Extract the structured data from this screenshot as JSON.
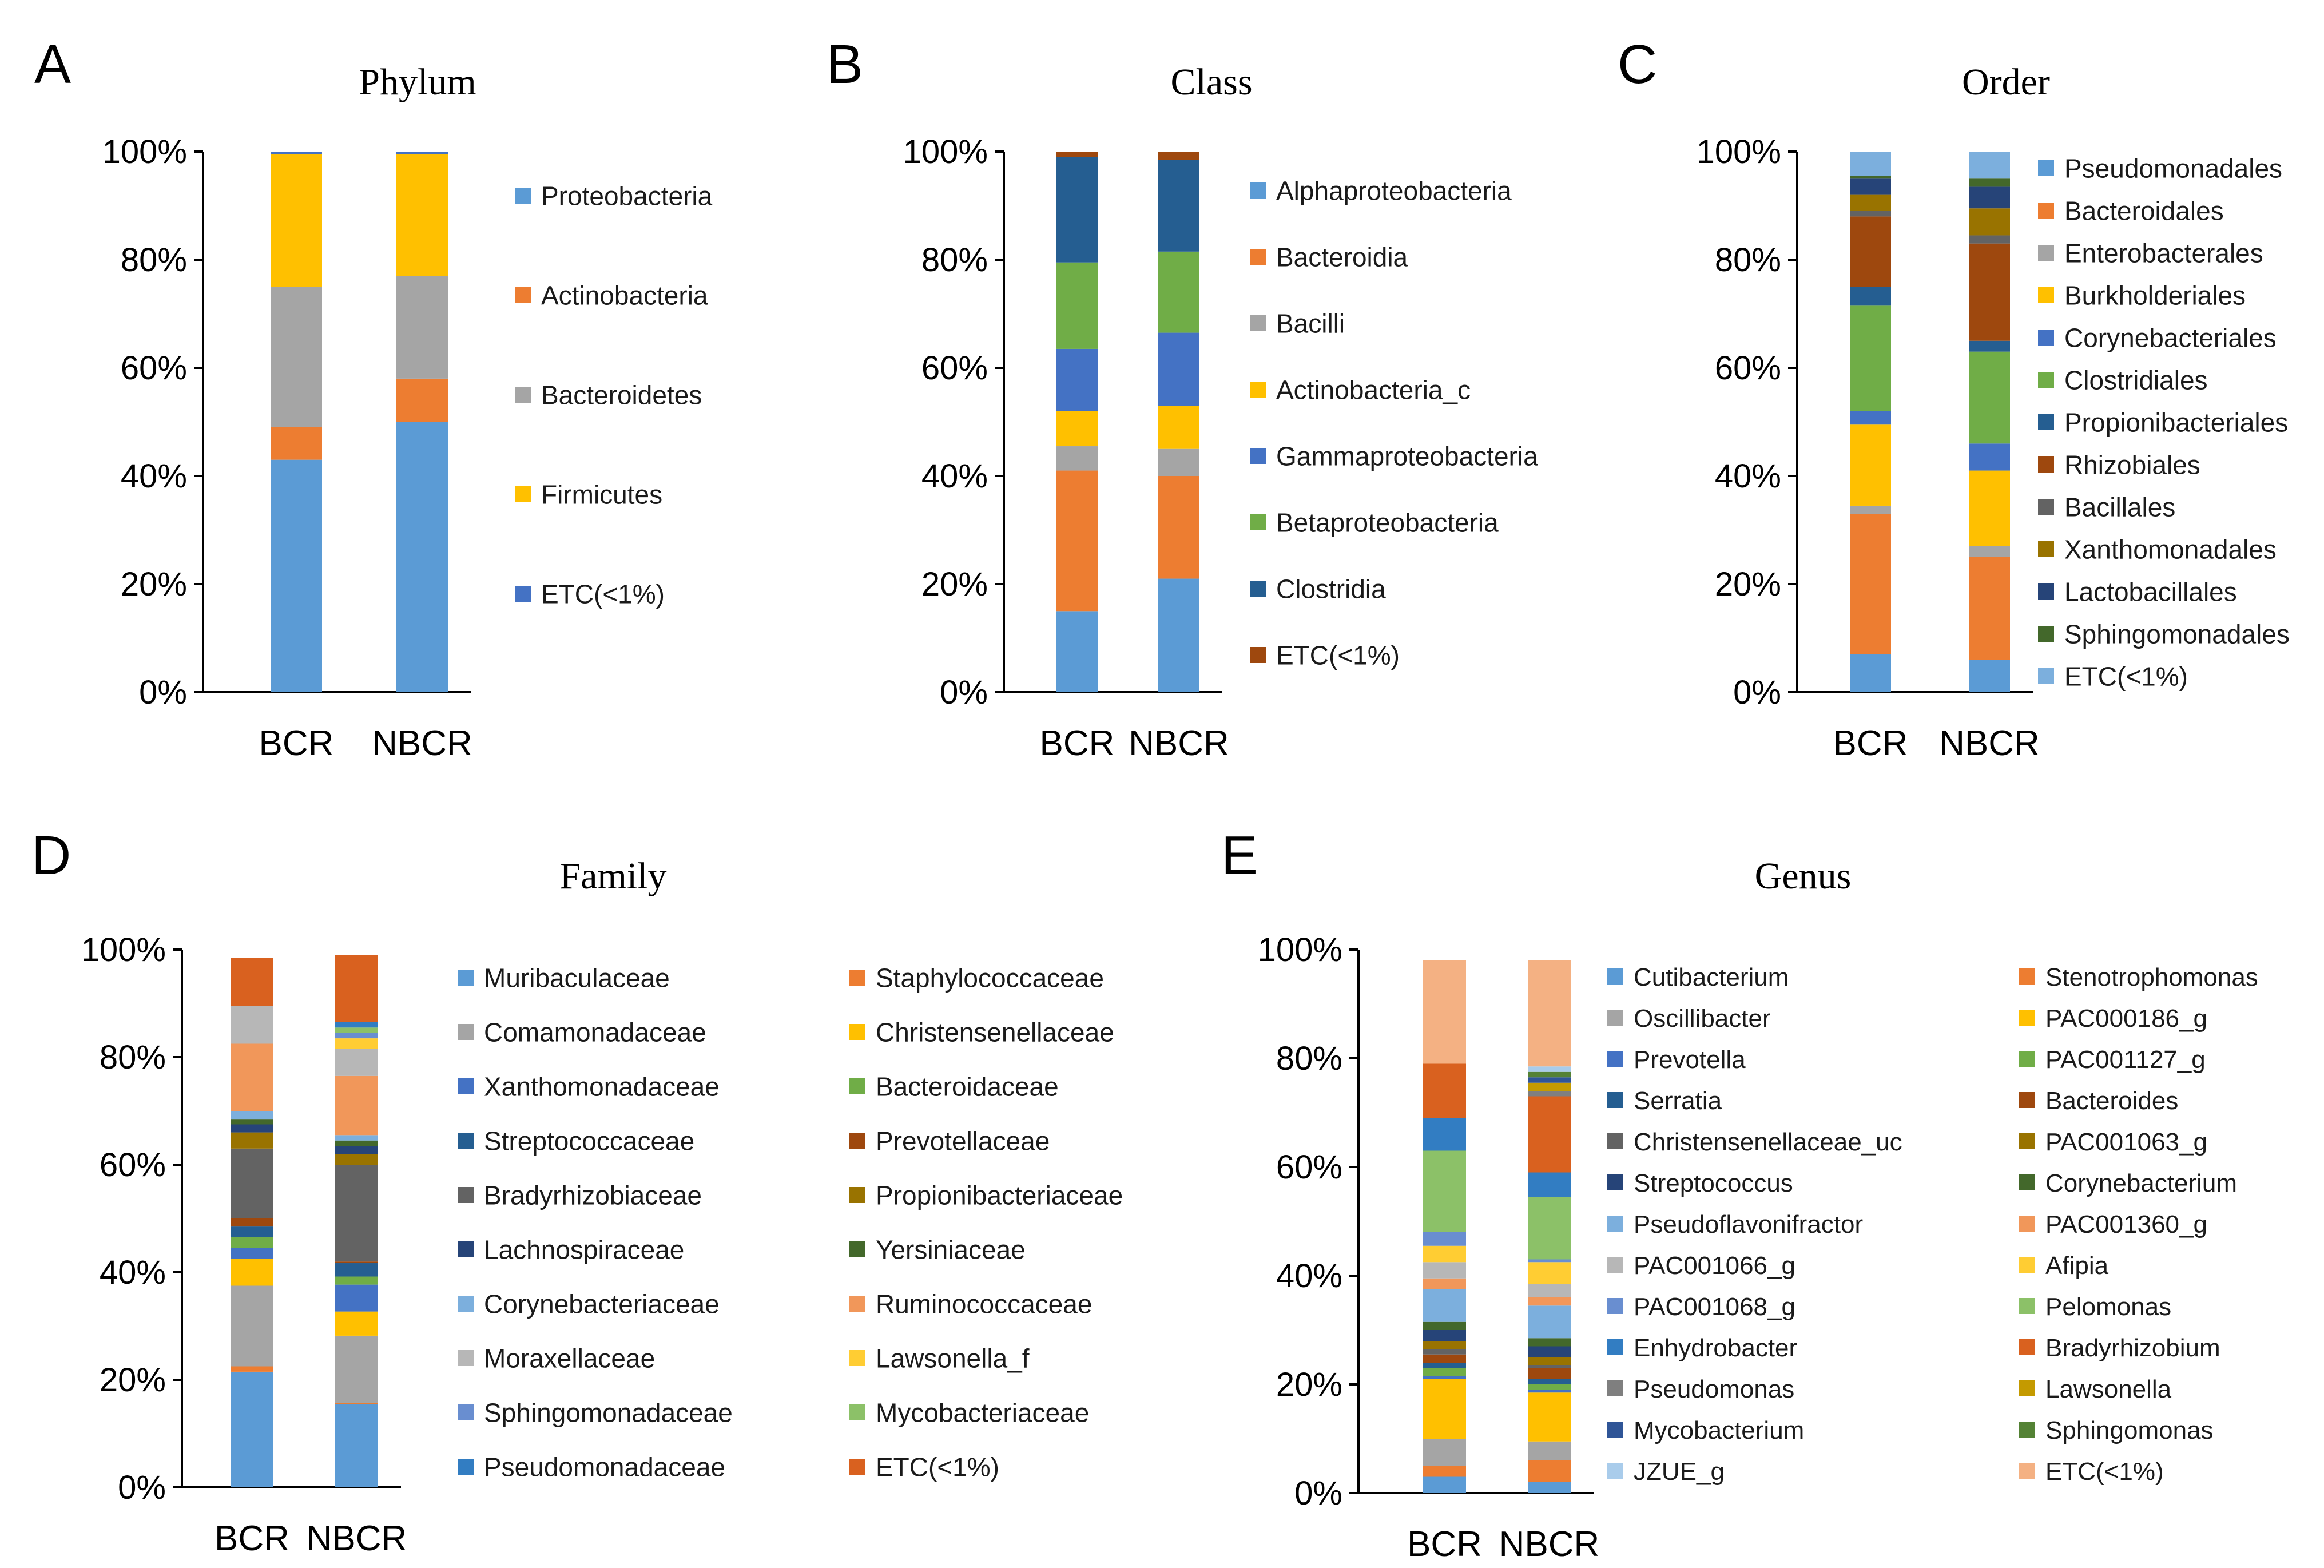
{
  "chart_data": [
    {
      "panel": "A",
      "type": "bar",
      "stacked": true,
      "title": "Phylum",
      "categories": [
        "BCR",
        "NBCR"
      ],
      "yticks": [
        "0%",
        "20%",
        "40%",
        "60%",
        "80%",
        "100%"
      ],
      "ylim": [
        0,
        100
      ],
      "series": [
        {
          "name": "Proteobacteria",
          "color": "#5B9BD5",
          "values": [
            43,
            50
          ]
        },
        {
          "name": "Actinobacteria",
          "color": "#ED7D31",
          "values": [
            6,
            8
          ]
        },
        {
          "name": "Bacteroidetes",
          "color": "#A5A5A5",
          "values": [
            26,
            19
          ]
        },
        {
          "name": "Firmicutes",
          "color": "#FFC000",
          "values": [
            24.5,
            22.5
          ]
        },
        {
          "name": "ETC(<1%)",
          "color": "#4472C4",
          "values": [
            0.5,
            0.5
          ]
        }
      ]
    },
    {
      "panel": "B",
      "type": "bar",
      "stacked": true,
      "title": "Class",
      "categories": [
        "BCR",
        "NBCR"
      ],
      "yticks": [
        "0%",
        "20%",
        "40%",
        "60%",
        "80%",
        "100%"
      ],
      "ylim": [
        0,
        100
      ],
      "series": [
        {
          "name": "Alphaproteobacteria",
          "color": "#5B9BD5",
          "values": [
            15,
            21
          ]
        },
        {
          "name": "Bacteroidia",
          "color": "#ED7D31",
          "values": [
            26,
            19
          ]
        },
        {
          "name": "Bacilli",
          "color": "#A5A5A5",
          "values": [
            4.5,
            5
          ]
        },
        {
          "name": "Actinobacteria_c",
          "color": "#FFC000",
          "values": [
            6.5,
            8
          ]
        },
        {
          "name": "Gammaproteobacteria",
          "color": "#4472C4",
          "values": [
            11.5,
            13.5
          ]
        },
        {
          "name": "Betaproteobacteria",
          "color": "#70AD47",
          "values": [
            16,
            15
          ]
        },
        {
          "name": "Clostridia",
          "color": "#255E91",
          "values": [
            19.5,
            17
          ]
        },
        {
          "name": "ETC(<1%)",
          "color": "#9E480E",
          "values": [
            1,
            1.5
          ]
        }
      ]
    },
    {
      "panel": "C",
      "type": "bar",
      "stacked": true,
      "title": "Order",
      "categories": [
        "BCR",
        "NBCR"
      ],
      "yticks": [
        "0%",
        "20%",
        "40%",
        "60%",
        "80%",
        "100%"
      ],
      "ylim": [
        0,
        100
      ],
      "series": [
        {
          "name": "Pseudomonadales",
          "color": "#5B9BD5",
          "values": [
            7,
            6
          ]
        },
        {
          "name": "Bacteroidales",
          "color": "#ED7D31",
          "values": [
            26,
            19
          ]
        },
        {
          "name": "Enterobacterales",
          "color": "#A5A5A5",
          "values": [
            1.5,
            2
          ]
        },
        {
          "name": "Burkholderiales",
          "color": "#FFC000",
          "values": [
            15,
            14
          ]
        },
        {
          "name": "Corynebacteriales",
          "color": "#4472C4",
          "values": [
            2.5,
            5
          ]
        },
        {
          "name": "Clostridiales",
          "color": "#70AD47",
          "values": [
            19.5,
            17
          ]
        },
        {
          "name": "Propionibacteriales",
          "color": "#255E91",
          "values": [
            3.5,
            2
          ]
        },
        {
          "name": "Rhizobiales",
          "color": "#9E480E",
          "values": [
            13,
            18
          ]
        },
        {
          "name": "Bacillales",
          "color": "#636363",
          "values": [
            1,
            1.5
          ]
        },
        {
          "name": "Xanthomonadales",
          "color": "#997300",
          "values": [
            3,
            5
          ]
        },
        {
          "name": "Lactobacillales",
          "color": "#264478",
          "values": [
            3,
            4
          ]
        },
        {
          "name": "Sphingomonadales",
          "color": "#43682B",
          "values": [
            0.5,
            1.5
          ]
        },
        {
          "name": "ETC(<1%)",
          "color": "#7CAFDD",
          "values": [
            4.5,
            5
          ]
        }
      ]
    },
    {
      "panel": "D",
      "type": "bar",
      "stacked": true,
      "title": "Family",
      "categories": [
        "BCR",
        "NBCR"
      ],
      "yticks": [
        "0%",
        "20%",
        "40%",
        "60%",
        "80%",
        "100%"
      ],
      "ylim": [
        0,
        100
      ],
      "series": [
        {
          "name": "Muribaculaceae",
          "color": "#5B9BD5",
          "values": [
            21.5,
            15.5
          ]
        },
        {
          "name": "Staphylococcaceae",
          "color": "#ED7D31",
          "values": [
            1,
            0.2
          ]
        },
        {
          "name": "Comamonadaceae",
          "color": "#A5A5A5",
          "values": [
            15,
            12.5
          ]
        },
        {
          "name": "Christensenellaceae",
          "color": "#FFC000",
          "values": [
            5,
            4.5
          ]
        },
        {
          "name": "Xanthomonadaceae",
          "color": "#4472C4",
          "values": [
            2,
            5
          ]
        },
        {
          "name": "Bacteroidaceae",
          "color": "#70AD47",
          "values": [
            2,
            1.5
          ]
        },
        {
          "name": "Streptococcaceae",
          "color": "#255E91",
          "values": [
            2,
            2.5
          ]
        },
        {
          "name": "Prevotellaceae",
          "color": "#9E480E",
          "values": [
            1.5,
            0.3
          ]
        },
        {
          "name": "Bradyrhizobiaceae",
          "color": "#636363",
          "values": [
            13,
            18
          ]
        },
        {
          "name": "Propionibacteriaceae",
          "color": "#997300",
          "values": [
            3,
            2
          ]
        },
        {
          "name": "Lachnospiraceae",
          "color": "#264478",
          "values": [
            1.5,
            1.5
          ]
        },
        {
          "name": "Yersiniaceae",
          "color": "#43682B",
          "values": [
            1,
            1
          ]
        },
        {
          "name": "Corynebacteriaceae",
          "color": "#7CAFDD",
          "values": [
            1.5,
            1
          ]
        },
        {
          "name": "Ruminococcaceae",
          "color": "#F1975A",
          "values": [
            12.5,
            11
          ]
        },
        {
          "name": "Moraxellaceae",
          "color": "#B7B7B7",
          "values": [
            7,
            5
          ]
        },
        {
          "name": "Lawsonella_f",
          "color": "#FFCD33",
          "values": [
            0,
            2
          ]
        },
        {
          "name": "Sphingomonadaceae",
          "color": "#698ED0",
          "values": [
            0,
            1
          ]
        },
        {
          "name": "Mycobacteriaceae",
          "color": "#8CC168",
          "values": [
            0,
            1
          ]
        },
        {
          "name": "Pseudomonadaceae",
          "color": "#327DC2",
          "values": [
            0,
            1
          ]
        },
        {
          "name": "ETC(<1%)",
          "color": "#D9611F",
          "values": [
            9,
            12.5
          ]
        }
      ]
    },
    {
      "panel": "E",
      "type": "bar",
      "stacked": true,
      "title": "Genus",
      "categories": [
        "BCR",
        "NBCR"
      ],
      "yticks": [
        "0%",
        "20%",
        "40%",
        "60%",
        "80%",
        "100%"
      ],
      "ylim": [
        0,
        100
      ],
      "series": [
        {
          "name": "Cutibacterium",
          "color": "#5B9BD5",
          "values": [
            3,
            2
          ]
        },
        {
          "name": "Stenotrophomonas",
          "color": "#ED7D31",
          "values": [
            2,
            4
          ]
        },
        {
          "name": "Oscillibacter",
          "color": "#A5A5A5",
          "values": [
            5,
            3.5
          ]
        },
        {
          "name": "PAC000186_g",
          "color": "#FFC000",
          "values": [
            11,
            9
          ]
        },
        {
          "name": "Prevotella",
          "color": "#4472C4",
          "values": [
            0.5,
            0.5
          ]
        },
        {
          "name": "PAC001127_g",
          "color": "#70AD47",
          "values": [
            1.5,
            1
          ]
        },
        {
          "name": "Serratia",
          "color": "#255E91",
          "values": [
            1,
            1
          ]
        },
        {
          "name": "Bacteroides",
          "color": "#9E480E",
          "values": [
            1.5,
            2
          ]
        },
        {
          "name": "Christensenellaceae_uc",
          "color": "#636363",
          "values": [
            1,
            0.5
          ]
        },
        {
          "name": "PAC001063_g",
          "color": "#997300",
          "values": [
            1.5,
            1.5
          ]
        },
        {
          "name": "Streptococcus",
          "color": "#264478",
          "values": [
            2,
            2
          ]
        },
        {
          "name": "Corynebacterium",
          "color": "#43682B",
          "values": [
            1.5,
            1.5
          ]
        },
        {
          "name": "Pseudoflavonifractor",
          "color": "#7CAFDD",
          "values": [
            6,
            6
          ]
        },
        {
          "name": "PAC001360_g",
          "color": "#F1975A",
          "values": [
            2,
            1.5
          ]
        },
        {
          "name": "PAC001066_g",
          "color": "#B7B7B7",
          "values": [
            3,
            2.5
          ]
        },
        {
          "name": "Afipia",
          "color": "#FFCD33",
          "values": [
            3,
            4
          ]
        },
        {
          "name": "PAC001068_g",
          "color": "#698ED0",
          "values": [
            2.5,
            0.5
          ]
        },
        {
          "name": "Pelomonas",
          "color": "#8CC168",
          "values": [
            15,
            11.5
          ]
        },
        {
          "name": "Enhydrobacter",
          "color": "#327DC2",
          "values": [
            6,
            4.5
          ]
        },
        {
          "name": "Bradyrhizobium",
          "color": "#D9611F",
          "values": [
            10,
            14
          ]
        },
        {
          "name": "Pseudomonas",
          "color": "#7F7F7F",
          "values": [
            0,
            1
          ]
        },
        {
          "name": "Lawsonella",
          "color": "#C49A00",
          "values": [
            0,
            1.5
          ]
        },
        {
          "name": "Mycobacterium",
          "color": "#2F5597",
          "values": [
            0,
            1
          ]
        },
        {
          "name": "Sphingomonas",
          "color": "#548235",
          "values": [
            0,
            1
          ]
        },
        {
          "name": "JZUE_g",
          "color": "#A9CCEB",
          "values": [
            0,
            1
          ]
        },
        {
          "name": "ETC(<1%)",
          "color": "#F4B183",
          "values": [
            19,
            19.5
          ]
        }
      ]
    }
  ]
}
